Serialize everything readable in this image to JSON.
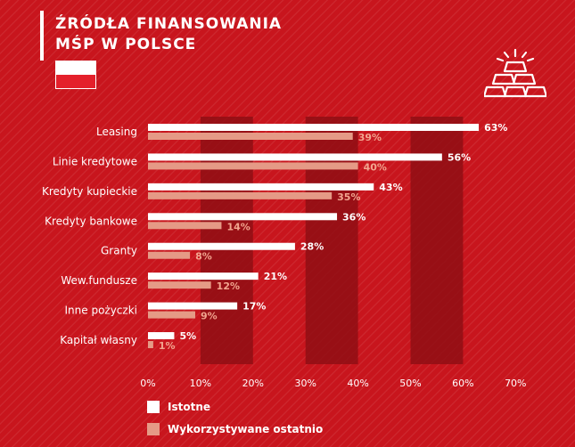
{
  "header": {
    "title_line1": "ŹRÓDŁA FINANSOWANIA",
    "title_line2": "MŚP W POLSCE"
  },
  "flag": {
    "country": "Poland",
    "colors": [
      "#ffffff",
      "#e4202b"
    ]
  },
  "icons": {
    "top_right": "gold-bars-icon"
  },
  "colors": {
    "background": "#c8151d",
    "band": "#8e0f14",
    "series_istotne": "#ffffff",
    "series_wykorzystywane": "#e59a86",
    "label_wykorzystywane": "#f2a58f"
  },
  "legend": {
    "placement": "bottom-left",
    "items": [
      {
        "label": "Istotne",
        "color": "#ffffff"
      },
      {
        "label": "Wykorzystywane ostatnio",
        "color": "#e59a86"
      }
    ]
  },
  "chart_data": {
    "type": "bar",
    "orientation": "horizontal",
    "categories": [
      "Leasing",
      "Linie kredytowe",
      "Kredyty kupieckie",
      "Kredyty bankowe",
      "Granty",
      "Wew.fundusze",
      "Inne pożyczki",
      "Kapitał własny"
    ],
    "series": [
      {
        "name": "Istotne",
        "values": [
          63,
          56,
          43,
          36,
          28,
          21,
          17,
          5
        ],
        "labels": [
          "63%",
          "56%",
          "43%",
          "36%",
          "28%",
          "21%",
          "17%",
          "5%"
        ]
      },
      {
        "name": "Wykorzystywane ostatnio",
        "values": [
          39,
          40,
          35,
          14,
          8,
          12,
          9,
          1
        ],
        "labels": [
          "39%",
          "40%",
          "35%",
          "14%",
          "8%",
          "12%",
          "9%",
          "1%"
        ]
      }
    ],
    "xlim": [
      0,
      70
    ],
    "xticks": [
      0,
      10,
      20,
      30,
      40,
      50,
      60,
      70
    ],
    "xtick_labels": [
      "0%",
      "10%",
      "20%",
      "30%",
      "40%",
      "50%",
      "60%",
      "70%"
    ],
    "alternating_bands": true,
    "grid": false
  }
}
